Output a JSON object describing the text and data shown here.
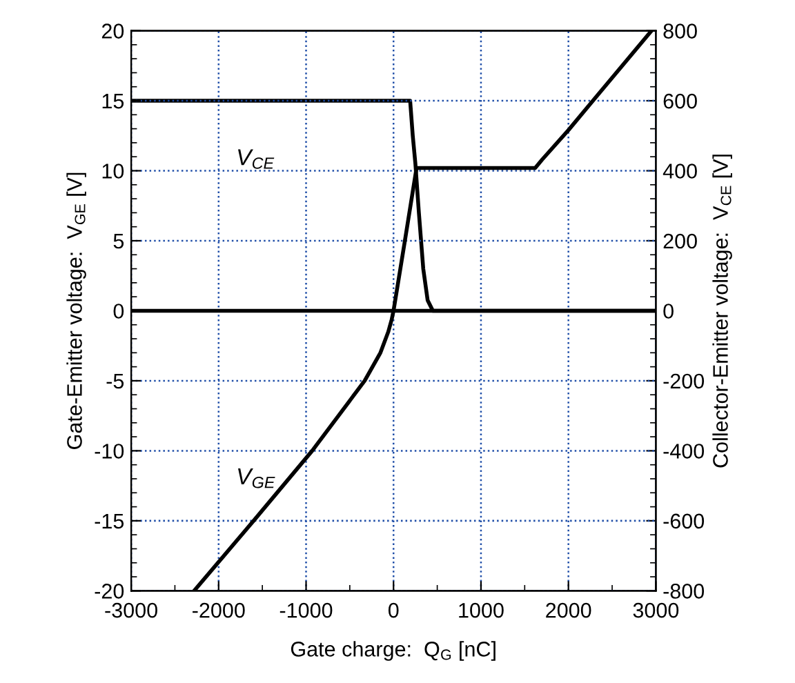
{
  "chart_data": {
    "type": "line",
    "xlabel": "Gate charge:  Q$_{G}$ [nC]",
    "ylabel": "Gate-Emitter voltage:  V$_{GE}$ [V]",
    "y2label": "Collector-Emitter voltage:  V$_{CE}$ [V]",
    "xlim": [
      -3000,
      3000
    ],
    "xticks": [
      -3000,
      -2000,
      -1000,
      0,
      1000,
      2000,
      3000
    ],
    "ylim": [
      -20,
      20
    ],
    "yticks": [
      -20,
      -15,
      -10,
      -5,
      0,
      5,
      10,
      15,
      20
    ],
    "y2lim": [
      -800,
      800
    ],
    "y2ticks": [
      -800,
      -600,
      -400,
      -200,
      0,
      200,
      400,
      600,
      800
    ],
    "grid": true,
    "marker": "none",
    "line_style": "solid",
    "series": [
      {
        "name": "V$_{GE}$",
        "color": "#000000",
        "x": [
          -2280,
          -1600,
          -930,
          -330,
          -150,
          -60,
          -20,
          0,
          130,
          263,
          1620,
          1700,
          2000,
          2280,
          2950
        ],
        "values": [
          -20,
          -15,
          -10,
          -5,
          -3,
          -1.5,
          -0.6,
          0,
          5,
          10.2,
          10.2,
          10.8,
          12.9,
          15,
          20
        ]
      },
      {
        "name": "V$_{CE}$",
        "color": "#000000",
        "axis": "y2",
        "x": [
          -3000,
          190,
          220,
          250,
          290,
          340,
          390,
          450,
          3000
        ],
        "values": [
          600,
          600,
          500,
          420,
          280,
          120,
          30,
          0,
          0
        ]
      }
    ],
    "ref_lines": [
      {
        "axis": "y",
        "value": 0,
        "color": "#000000",
        "line_style": "solid"
      }
    ]
  }
}
